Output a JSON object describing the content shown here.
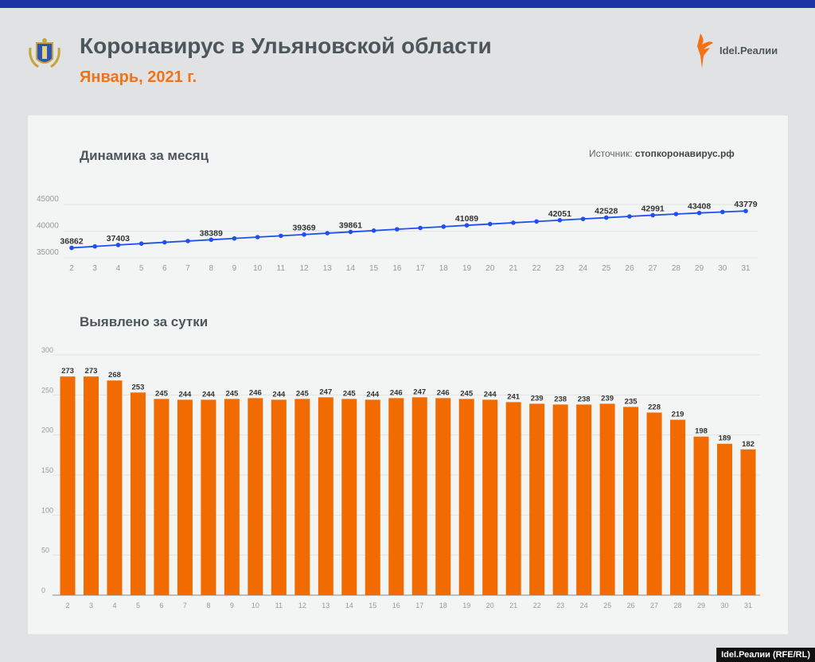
{
  "header": {
    "title": "Коронавирус в Ульяновской области",
    "subtitle": "Январь, 2021 г.",
    "brand": "Idel.Реалии"
  },
  "source": {
    "label": "Источник:",
    "value": "стопкоронавирус.рф"
  },
  "credit": "Idel.Реалии (RFE/RL)",
  "colors": {
    "line": "#1f4ff0",
    "bar": "#f26b00",
    "accent": "#f47216",
    "topbar": "#1e33a6"
  },
  "chart_data": [
    {
      "type": "line",
      "title": "Динамика за месяц",
      "x": [
        "2",
        "3",
        "4",
        "5",
        "6",
        "7",
        "8",
        "9",
        "10",
        "11",
        "12",
        "13",
        "14",
        "15",
        "16",
        "17",
        "18",
        "19",
        "20",
        "21",
        "22",
        "23",
        "24",
        "25",
        "26",
        "27",
        "28",
        "29",
        "30",
        "31"
      ],
      "values": [
        36862,
        37135,
        37403,
        37656,
        37901,
        38145,
        38389,
        38634,
        38880,
        39124,
        39369,
        39616,
        39861,
        40105,
        40351,
        40598,
        40844,
        41089,
        41333,
        41574,
        41813,
        42051,
        42289,
        42528,
        42763,
        42991,
        43210,
        43408,
        43597,
        43779
      ],
      "labeled": [
        "2",
        "4",
        "8",
        "12",
        "14",
        "19",
        "23",
        "25",
        "27",
        "29",
        "31"
      ],
      "yticks": [
        "35000",
        "40000",
        "45000"
      ],
      "ylim": [
        35000,
        45000
      ],
      "grid": true
    },
    {
      "type": "bar",
      "title": "Выявлено за сутки",
      "x": [
        "2",
        "3",
        "4",
        "5",
        "6",
        "7",
        "8",
        "9",
        "10",
        "11",
        "12",
        "13",
        "14",
        "15",
        "16",
        "17",
        "18",
        "19",
        "20",
        "21",
        "22",
        "23",
        "24",
        "25",
        "26",
        "27",
        "28",
        "29",
        "30",
        "31"
      ],
      "values": [
        273,
        273,
        268,
        253,
        245,
        244,
        244,
        245,
        246,
        244,
        245,
        247,
        245,
        244,
        246,
        247,
        246,
        245,
        244,
        241,
        239,
        238,
        238,
        239,
        235,
        228,
        219,
        198,
        189,
        182
      ],
      "yticks": [
        "0",
        "50",
        "100",
        "150",
        "200",
        "250",
        "300"
      ],
      "ylim": [
        0,
        300
      ],
      "grid": true
    }
  ]
}
